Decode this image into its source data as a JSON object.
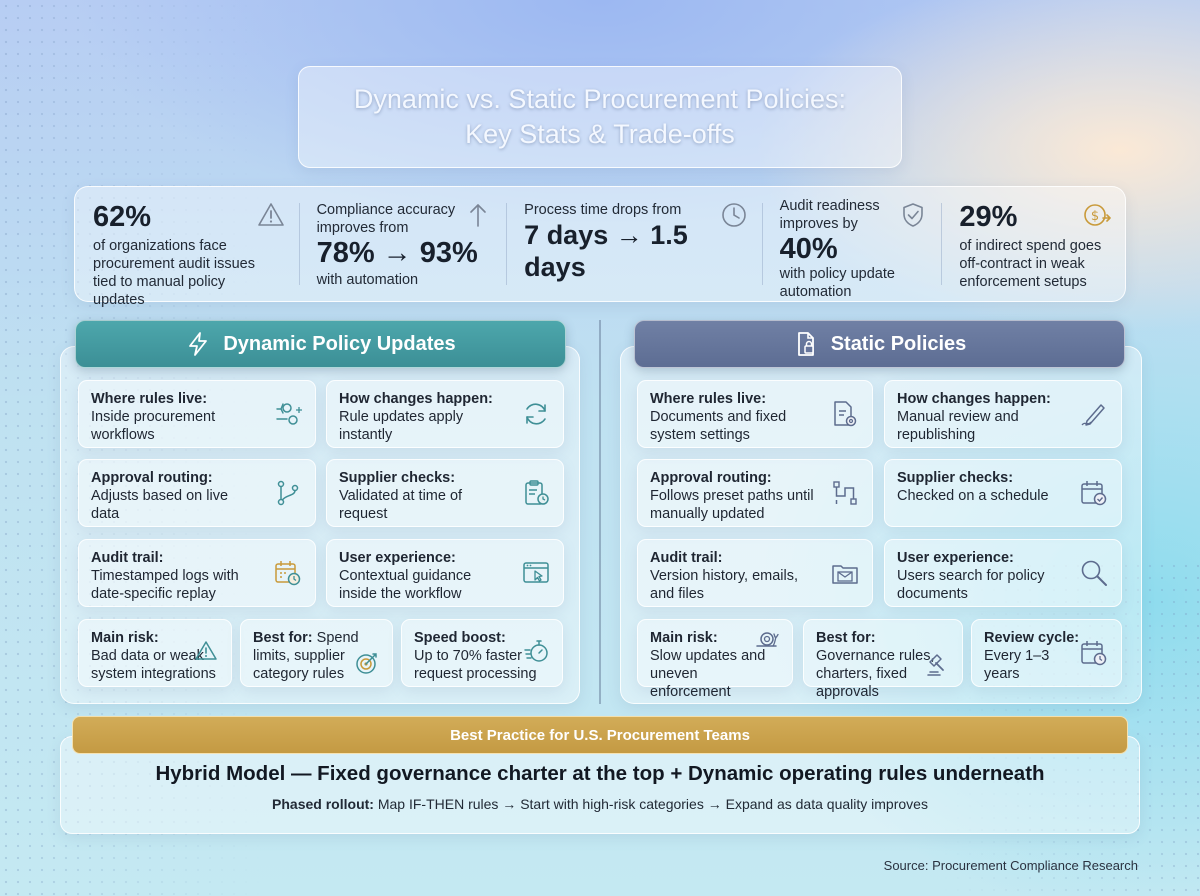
{
  "title": {
    "line1": "Dynamic vs. Static Procurement Policies:",
    "line2": "Key Stats & Trade-offs"
  },
  "stats": [
    {
      "big": "62%",
      "text": "of organizations face procurement audit issues tied to manual policy updates",
      "icon": "warning-triangle-icon"
    },
    {
      "pre": "Compliance accuracy improves from",
      "big": "78% → 93%",
      "text": "with automation",
      "icon": "arrow-up-icon"
    },
    {
      "pre": "Process time drops from",
      "big": "7 days → 1.5 days",
      "icon": "clock-icon"
    },
    {
      "pre": "Audit readiness improves by",
      "big": "40%",
      "text": "with policy update automation",
      "icon": "shield-check-icon"
    },
    {
      "big": "29%",
      "text": "of indirect spend goes off-contract in weak enforcement setups",
      "icon": "dollar-arrow-icon"
    }
  ],
  "dynamic": {
    "heading": "Dynamic Policy Updates",
    "cards": [
      {
        "label": "Where rules live:",
        "text": "Inside procurement workflows",
        "icon": "workflow-gears-icon"
      },
      {
        "label": "How changes happen:",
        "text": "Rule updates apply instantly",
        "icon": "refresh-icon"
      },
      {
        "label": "Approval routing:",
        "text": "Adjusts based on live data",
        "icon": "branch-icon"
      },
      {
        "label": "Supplier checks:",
        "text": "Validated at time of request",
        "icon": "clipboard-clock-icon"
      },
      {
        "label": "Audit trail:",
        "text": "Timestamped logs with date-specific replay",
        "icon": "calendar-clock-icon"
      },
      {
        "label": "User experience:",
        "text": "Contextual guidance inside the workflow",
        "icon": "browser-cursor-icon"
      },
      {
        "label": "Main risk:",
        "text": "Bad data or weak system integrations",
        "icon": "warning-icon"
      },
      {
        "label": "Best for:",
        "text": "Spend limits, supplier category rules",
        "icon": "target-icon"
      },
      {
        "label": "Speed boost:",
        "text": "Up to 70% faster request processing",
        "icon": "stopwatch-icon"
      }
    ]
  },
  "static": {
    "heading": "Static Policies",
    "cards": [
      {
        "label": "Where rules live:",
        "text": "Documents and fixed system settings",
        "icon": "document-gear-icon"
      },
      {
        "label": "How changes happen:",
        "text": "Manual review and republishing",
        "icon": "pen-hand-icon"
      },
      {
        "label": "Approval routing:",
        "text": "Follows preset paths until manually updated",
        "icon": "preset-path-icon"
      },
      {
        "label": "Supplier checks:",
        "text": "Checked on a schedule",
        "icon": "calendar-check-icon"
      },
      {
        "label": "Audit trail:",
        "text": "Version history, emails, and files",
        "icon": "folder-mail-icon"
      },
      {
        "label": "User experience:",
        "text": "Users search for policy documents",
        "icon": "magnifier-icon"
      },
      {
        "label": "Main risk:",
        "text": "Slow updates and uneven enforcement",
        "icon": "snail-icon"
      },
      {
        "label": "Best for:",
        "text": "Governance rules, charters, fixed approvals",
        "icon": "gavel-icon"
      },
      {
        "label": "Review cycle:",
        "text": "Every 1–3 years",
        "icon": "calendar-clock-icon"
      }
    ]
  },
  "best_practice": {
    "heading": "Best Practice for U.S. Procurement Teams",
    "main": "Hybrid Model — Fixed governance charter at the top + Dynamic operating rules underneath",
    "sub_label": "Phased rollout:",
    "sub_text": "Map IF-THEN rules → Start with high-risk categories → Expand as data quality improves"
  },
  "source": "Source: Procurement Compliance Research",
  "colors": {
    "dynamic_accent": "#4aa0a6",
    "static_accent": "#6878a0",
    "gold": "#c9a14b",
    "icon_teal": "#3f8f96",
    "icon_slate": "#5d6c8e",
    "icon_gold": "#c99a3a"
  }
}
